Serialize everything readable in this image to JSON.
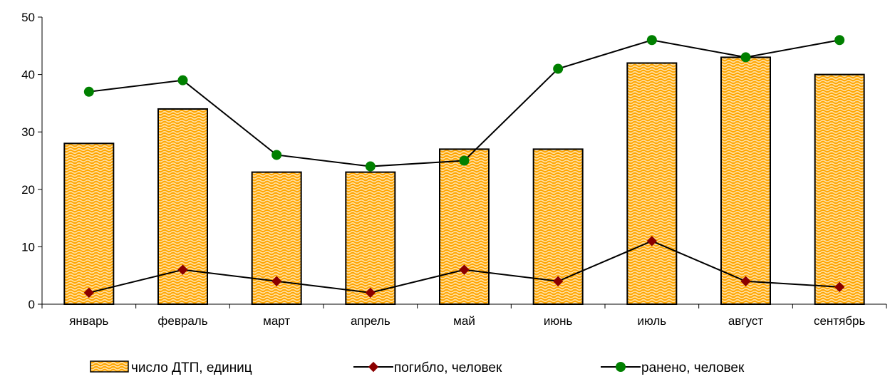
{
  "chart_data": {
    "type": "bar",
    "categories": [
      "январь",
      "февраль",
      "март",
      "апрель",
      "май",
      "июнь",
      "июль",
      "август",
      "сентябрь"
    ],
    "ylim": [
      0,
      50
    ],
    "yticks": [
      0,
      10,
      20,
      30,
      40,
      50
    ],
    "grid": false,
    "legend_position": "bottom",
    "series": [
      {
        "name": "число ДТП, единиц",
        "type": "bar",
        "values": [
          28,
          34,
          23,
          23,
          27,
          27,
          42,
          43,
          40
        ],
        "color": "#FFA500",
        "pattern_color": "#FFE0A0"
      },
      {
        "name": "погибло, человек",
        "type": "line",
        "marker": "diamond",
        "values": [
          2,
          6,
          4,
          2,
          6,
          4,
          11,
          4,
          3
        ],
        "color": "#8B0000"
      },
      {
        "name": "ранено, человек",
        "type": "line",
        "marker": "circle",
        "values": [
          37,
          39,
          26,
          24,
          25,
          41,
          46,
          43,
          46
        ],
        "color": "#008000"
      }
    ]
  }
}
